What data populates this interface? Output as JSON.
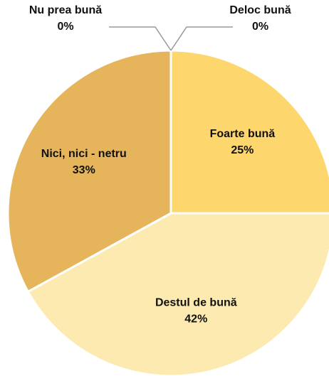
{
  "chart_data": {
    "type": "pie",
    "categories": [
      "Foarte bună",
      "Destul de bună",
      "Nici, nici - netru",
      "Nu prea bună",
      "Deloc bună"
    ],
    "values": [
      25,
      42,
      33,
      0,
      0
    ],
    "value_labels": [
      "25%",
      "42%",
      "33%",
      "0%",
      "0%"
    ],
    "colors": [
      "#fdd66e",
      "#fdeab0",
      "#e6b45a",
      "#e6b45a",
      "#fdd66e"
    ]
  }
}
